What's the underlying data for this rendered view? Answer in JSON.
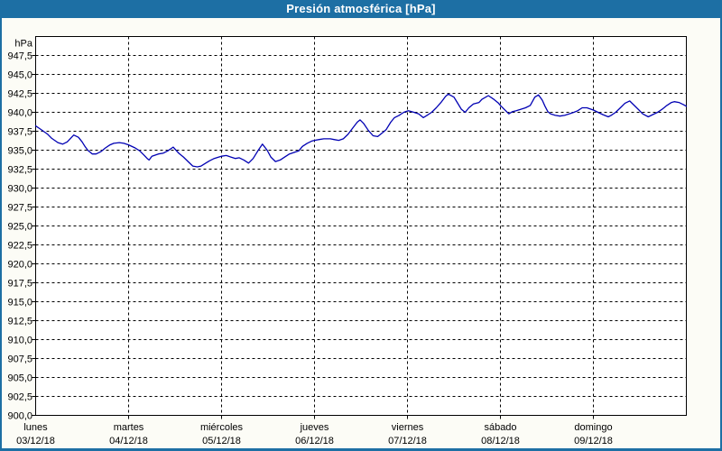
{
  "window": {
    "title": "Presión atmosférica [hPa]"
  },
  "colors": {
    "titlebar_bg": "#1d6fa4",
    "frame_border": "#1d6fa4",
    "background": "#fcfcf6",
    "plot_bg": "#ffffff",
    "line": "#0000b3",
    "grid": "#000000",
    "text": "#000000"
  },
  "chart_data": {
    "type": "line",
    "title": "Presión atmosférica [hPa]",
    "y_unit_label": "hPa",
    "ylim": [
      900,
      950
    ],
    "ytick_step": 2.5,
    "ytick_labels": [
      "947,5",
      "945,0",
      "942,5",
      "940,0",
      "937,5",
      "935,0",
      "932,5",
      "930,0",
      "927,5",
      "925,0",
      "922,5",
      "920,0",
      "917,5",
      "915,0",
      "912,5",
      "910,0",
      "907,5",
      "905,0",
      "902,5",
      "900,0"
    ],
    "grid": "dashed",
    "legend_position": "none",
    "xlim_days": [
      0,
      7
    ],
    "x_days": [
      {
        "name": "lunes",
        "date": "03/12/18"
      },
      {
        "name": "martes",
        "date": "04/12/18"
      },
      {
        "name": "miércoles",
        "date": "05/12/18"
      },
      {
        "name": "jueves",
        "date": "06/12/18"
      },
      {
        "name": "viernes",
        "date": "07/12/18"
      },
      {
        "name": "sábado",
        "date": "08/12/18"
      },
      {
        "name": "domingo",
        "date": "09/12/18"
      }
    ],
    "series": [
      {
        "name": "Presión atmosférica",
        "color": "#0000b3",
        "points": [
          [
            0.0,
            938.2
          ],
          [
            0.05,
            937.8
          ],
          [
            0.13,
            937.1
          ],
          [
            0.17,
            936.6
          ],
          [
            0.24,
            936.0
          ],
          [
            0.29,
            935.8
          ],
          [
            0.34,
            936.1
          ],
          [
            0.41,
            937.0
          ],
          [
            0.46,
            936.7
          ],
          [
            0.5,
            936.1
          ],
          [
            0.53,
            935.5
          ],
          [
            0.56,
            935.0
          ],
          [
            0.61,
            934.5
          ],
          [
            0.65,
            934.5
          ],
          [
            0.7,
            934.8
          ],
          [
            0.75,
            935.3
          ],
          [
            0.8,
            935.7
          ],
          [
            0.84,
            935.9
          ],
          [
            0.9,
            936.0
          ],
          [
            0.95,
            935.9
          ],
          [
            1.0,
            935.7
          ],
          [
            1.07,
            935.3
          ],
          [
            1.12,
            934.9
          ],
          [
            1.17,
            934.3
          ],
          [
            1.2,
            933.9
          ],
          [
            1.22,
            933.7
          ],
          [
            1.25,
            934.2
          ],
          [
            1.32,
            934.5
          ],
          [
            1.37,
            934.6
          ],
          [
            1.42,
            934.9
          ],
          [
            1.48,
            935.4
          ],
          [
            1.51,
            935.0
          ],
          [
            1.54,
            934.6
          ],
          [
            1.59,
            934.1
          ],
          [
            1.64,
            933.5
          ],
          [
            1.69,
            932.9
          ],
          [
            1.74,
            932.8
          ],
          [
            1.78,
            932.9
          ],
          [
            1.83,
            933.3
          ],
          [
            1.87,
            933.6
          ],
          [
            1.92,
            933.9
          ],
          [
            1.97,
            934.1
          ],
          [
            2.0,
            934.2
          ],
          [
            2.05,
            934.3
          ],
          [
            2.1,
            934.1
          ],
          [
            2.15,
            933.9
          ],
          [
            2.19,
            934.0
          ],
          [
            2.24,
            933.7
          ],
          [
            2.29,
            933.3
          ],
          [
            2.34,
            933.9
          ],
          [
            2.39,
            934.9
          ],
          [
            2.44,
            935.8
          ],
          [
            2.49,
            935.0
          ],
          [
            2.53,
            934.1
          ],
          [
            2.58,
            933.5
          ],
          [
            2.63,
            933.7
          ],
          [
            2.68,
            934.1
          ],
          [
            2.73,
            934.5
          ],
          [
            2.78,
            934.7
          ],
          [
            2.83,
            934.9
          ],
          [
            2.87,
            935.5
          ],
          [
            2.92,
            935.9
          ],
          [
            2.97,
            936.2
          ],
          [
            3.0,
            936.3
          ],
          [
            3.05,
            936.4
          ],
          [
            3.1,
            936.5
          ],
          [
            3.17,
            936.5
          ],
          [
            3.21,
            936.4
          ],
          [
            3.26,
            936.3
          ],
          [
            3.31,
            936.5
          ],
          [
            3.36,
            937.1
          ],
          [
            3.41,
            937.9
          ],
          [
            3.46,
            938.7
          ],
          [
            3.49,
            939.0
          ],
          [
            3.53,
            938.5
          ],
          [
            3.58,
            937.6
          ],
          [
            3.63,
            936.9
          ],
          [
            3.68,
            936.8
          ],
          [
            3.73,
            937.3
          ],
          [
            3.77,
            937.7
          ],
          [
            3.82,
            938.7
          ],
          [
            3.86,
            939.3
          ],
          [
            3.91,
            939.6
          ],
          [
            3.96,
            940.0
          ],
          [
            4.01,
            940.2
          ],
          [
            4.07,
            940.0
          ],
          [
            4.12,
            939.8
          ],
          [
            4.17,
            939.3
          ],
          [
            4.21,
            939.6
          ],
          [
            4.26,
            940.0
          ],
          [
            4.31,
            940.6
          ],
          [
            4.36,
            941.3
          ],
          [
            4.41,
            942.1
          ],
          [
            4.44,
            942.4
          ],
          [
            4.5,
            942.0
          ],
          [
            4.54,
            941.2
          ],
          [
            4.58,
            940.4
          ],
          [
            4.62,
            940.0
          ],
          [
            4.66,
            940.6
          ],
          [
            4.71,
            941.1
          ],
          [
            4.77,
            941.3
          ],
          [
            4.8,
            941.7
          ],
          [
            4.87,
            942.2
          ],
          [
            4.93,
            941.7
          ],
          [
            4.98,
            941.2
          ],
          [
            5.0,
            940.9
          ],
          [
            5.04,
            940.4
          ],
          [
            5.09,
            939.8
          ],
          [
            5.13,
            940.1
          ],
          [
            5.17,
            940.2
          ],
          [
            5.22,
            940.4
          ],
          [
            5.27,
            940.6
          ],
          [
            5.32,
            940.9
          ],
          [
            5.37,
            942.0
          ],
          [
            5.41,
            942.3
          ],
          [
            5.45,
            941.6
          ],
          [
            5.48,
            940.8
          ],
          [
            5.51,
            940.1
          ],
          [
            5.54,
            939.8
          ],
          [
            5.59,
            939.6
          ],
          [
            5.64,
            939.5
          ],
          [
            5.69,
            939.6
          ],
          [
            5.74,
            939.8
          ],
          [
            5.79,
            940.0
          ],
          [
            5.83,
            940.2
          ],
          [
            5.88,
            940.6
          ],
          [
            5.93,
            940.6
          ],
          [
            6.0,
            940.3
          ],
          [
            6.05,
            940.0
          ],
          [
            6.1,
            939.7
          ],
          [
            6.16,
            939.4
          ],
          [
            6.19,
            939.6
          ],
          [
            6.24,
            940.0
          ],
          [
            6.29,
            940.6
          ],
          [
            6.34,
            941.2
          ],
          [
            6.39,
            941.5
          ],
          [
            6.44,
            940.9
          ],
          [
            6.49,
            940.3
          ],
          [
            6.53,
            939.8
          ],
          [
            6.59,
            939.4
          ],
          [
            6.64,
            939.7
          ],
          [
            6.69,
            940.0
          ],
          [
            6.74,
            940.4
          ],
          [
            6.79,
            940.9
          ],
          [
            6.84,
            941.3
          ],
          [
            6.87,
            941.4
          ],
          [
            6.92,
            941.3
          ],
          [
            6.97,
            941.0
          ],
          [
            7.0,
            940.8
          ]
        ]
      }
    ]
  }
}
